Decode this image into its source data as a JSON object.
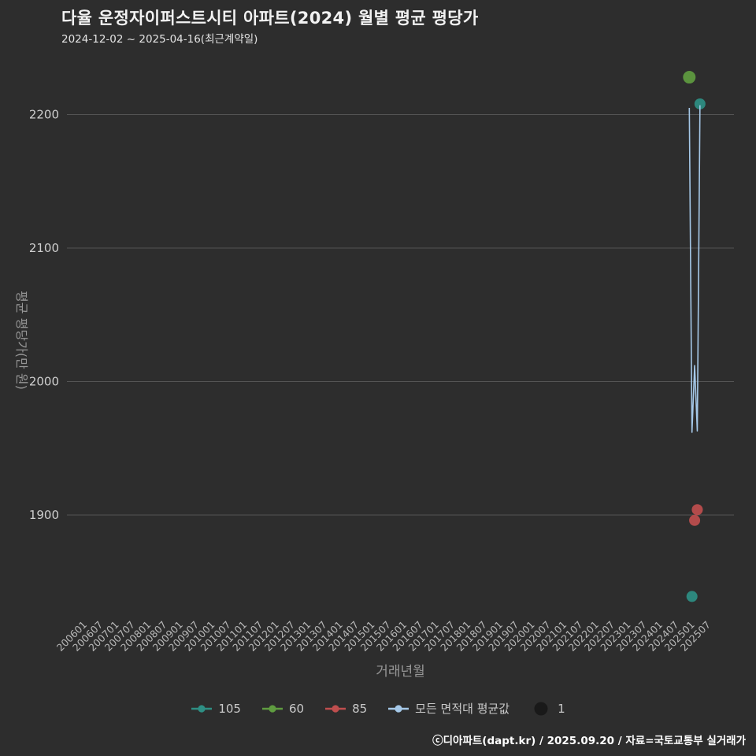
{
  "header": {
    "title": "다율 운정자이퍼스트시티 아파트(2024) 월별 평균 평당가",
    "subtitle": "2024-12-02 ~ 2025-04-16(최근계약일)"
  },
  "footer": {
    "credit": "ⓒ디아파트(dapt.kr) / 2025.09.20 / 자료=국토교통부 실거래가"
  },
  "colors": {
    "background": "#2d2d2d",
    "grid": "#545454",
    "series_105": "#2e8f84",
    "series_60": "#5f9c40",
    "series_85": "#bf4e4e",
    "series_avg_line": "#a5c8e8",
    "count_dot": "#191919"
  },
  "chart_data": {
    "type": "line+scatter",
    "title": "다율 운정자이퍼스트시티 아파트(2024) 월별 평균 평당가",
    "xlabel": "거래년월",
    "ylabel": "평균 평당가(만 원)",
    "ylim": [
      1820,
      2240
    ],
    "grid": "horizontal",
    "legend_position": "bottom-center",
    "y_ticks": [
      1900,
      2000,
      2100,
      2200
    ],
    "x_ticks": [
      "200601",
      "200607",
      "200701",
      "200707",
      "200801",
      "200807",
      "200901",
      "200907",
      "201001",
      "201007",
      "201101",
      "201107",
      "201201",
      "201207",
      "201301",
      "201307",
      "201401",
      "201407",
      "201501",
      "201507",
      "201601",
      "201607",
      "201701",
      "201707",
      "201801",
      "201807",
      "201901",
      "201907",
      "202001",
      "202007",
      "202101",
      "202107",
      "202201",
      "202207",
      "202301",
      "202307",
      "202401",
      "202407",
      "202501",
      "202507"
    ],
    "series": [
      {
        "name": "105",
        "type": "scatter",
        "color": "#2e8f84",
        "marker_size": 7,
        "points": [
          {
            "x": "202501",
            "y": 1839
          },
          {
            "x": "202504",
            "y": 2208
          }
        ]
      },
      {
        "name": "60",
        "type": "scatter",
        "color": "#5f9c40",
        "marker_size": 8,
        "points": [
          {
            "x": "202412",
            "y": 2228
          }
        ]
      },
      {
        "name": "85",
        "type": "scatter",
        "color": "#bf4e4e",
        "marker_size": 7,
        "points": [
          {
            "x": "202502",
            "y": 1896
          },
          {
            "x": "202503",
            "y": 1904
          }
        ]
      },
      {
        "name": "모든 면적대 평균값",
        "type": "line",
        "color": "#a5c8e8",
        "points": [
          {
            "x": "202412",
            "y": 2205
          },
          {
            "x": "202501",
            "y": 1962
          },
          {
            "x": "202502",
            "y": 2012
          },
          {
            "x": "202503",
            "y": 1963
          },
          {
            "x": "202504",
            "y": 2207
          }
        ]
      }
    ],
    "legend": [
      {
        "label": "105",
        "color": "#2e8f84",
        "type": "line-dot"
      },
      {
        "label": "60",
        "color": "#5f9c40",
        "type": "line-dot"
      },
      {
        "label": "85",
        "color": "#bf4e4e",
        "type": "line-dot"
      },
      {
        "label": "모든 면적대 평균값",
        "color": "#a5c8e8",
        "type": "line-dot"
      },
      {
        "label": "1",
        "color": "#191919",
        "type": "dot"
      }
    ]
  }
}
